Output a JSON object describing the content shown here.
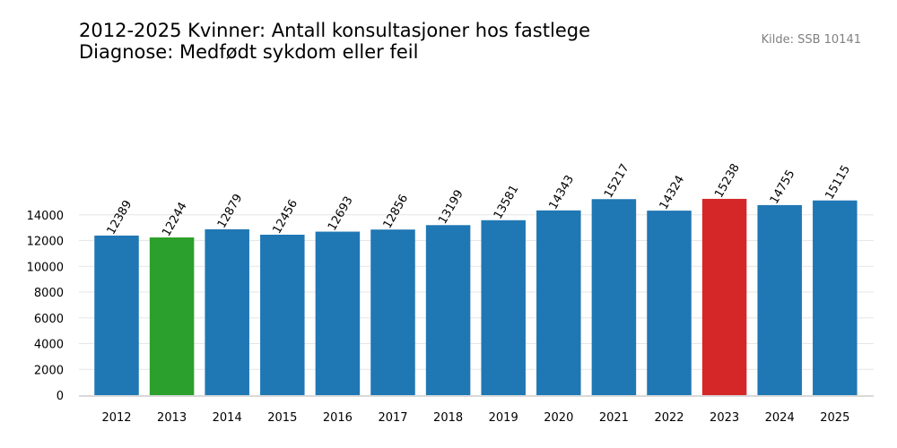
{
  "chart_data": {
    "type": "bar",
    "title_lines": [
      "2012-2025 Kvinner: Antall konsultasjoner hos fastlege",
      "Diagnose: Medfødt sykdom eller feil"
    ],
    "source": "Kilde: SSB 10141",
    "categories": [
      "2012",
      "2013",
      "2014",
      "2015",
      "2016",
      "2017",
      "2018",
      "2019",
      "2020",
      "2021",
      "2022",
      "2023",
      "2024",
      "2025"
    ],
    "values": [
      12389,
      12244,
      12879,
      12456,
      12693,
      12856,
      13199,
      13581,
      14343,
      15217,
      14324,
      15238,
      14755,
      15115
    ],
    "y_ticks": [
      0,
      2000,
      4000,
      6000,
      8000,
      10000,
      12000,
      14000
    ],
    "ylim": [
      0,
      16000
    ],
    "grid": "horizontal",
    "colors": {
      "default": "#1f77b4",
      "min": "#2ca02c",
      "max": "#d62728",
      "grid": "#e6e6e6",
      "axis": "#d9d9d9"
    },
    "highlight": {
      "min_category": "2013",
      "max_category": "2023"
    }
  }
}
